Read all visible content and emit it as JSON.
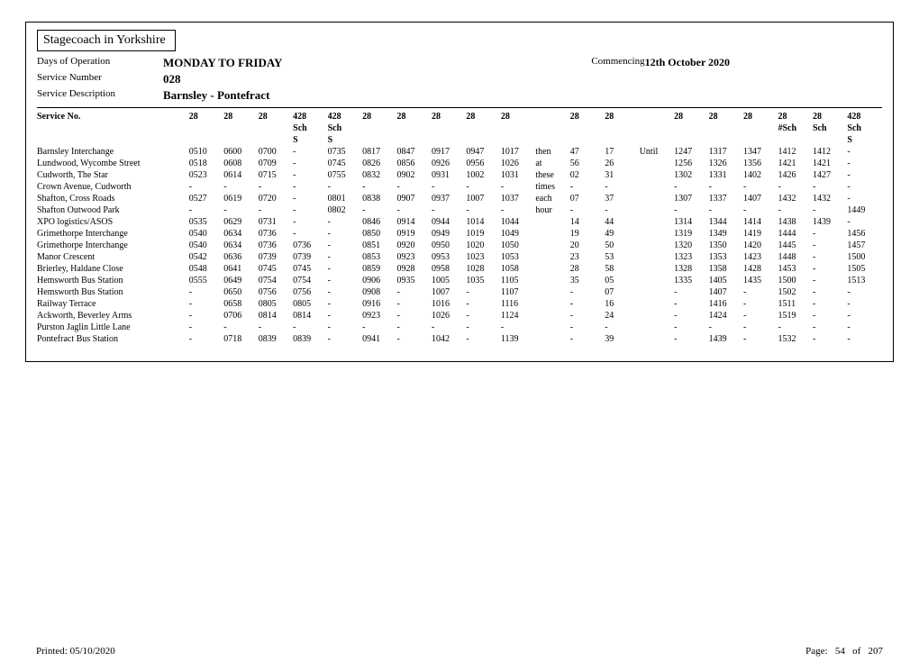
{
  "operator": "Stagecoach in Yorkshire",
  "labels": {
    "days": "Days of Operation",
    "serviceNumber": "Service Number",
    "serviceDescription": "Service Description",
    "commencing": "Commencing",
    "serviceNoRow": "Service No."
  },
  "header": {
    "days": "MONDAY TO FRIDAY",
    "serviceNumber": "028",
    "serviceDescription": "Barnsley - Pontefract",
    "commencingDate": "12th October 2020"
  },
  "serviceRow": [
    "28",
    "28",
    "28",
    "428",
    "428",
    "28",
    "28",
    "28",
    "28",
    "28",
    "",
    "28",
    "28",
    "",
    "28",
    "28",
    "28",
    "28",
    "28",
    "428"
  ],
  "noteRow1": [
    "",
    "",
    "",
    "Sch",
    "Sch",
    "",
    "",
    "",
    "",
    "",
    "",
    "",
    "",
    "",
    "",
    "",
    "",
    "#Sch",
    "Sch",
    "Sch"
  ],
  "noteRow2": [
    "",
    "",
    "",
    "S",
    "S",
    "",
    "",
    "",
    "",
    "",
    "",
    "",
    "",
    "",
    "",
    "",
    "",
    "",
    "",
    "S"
  ],
  "txtCol1": [
    "then",
    "at",
    "these",
    "times",
    "each",
    "hour",
    "",
    "",
    "",
    "",
    "",
    "",
    "",
    "",
    "",
    "",
    ""
  ],
  "txtCol2": [
    "Until",
    "",
    "",
    "",
    "",
    "",
    "",
    "",
    "",
    "",
    "",
    "",
    "",
    "",
    "",
    "",
    "",
    ""
  ],
  "stops": [
    {
      "name": "Barnsley Interchange",
      "t": [
        "0510",
        "0600",
        "0700",
        "-",
        "0735",
        "0817",
        "0847",
        "0917",
        "0947",
        "1017",
        "47",
        "17",
        "1247",
        "1317",
        "1347",
        "1412",
        "1412",
        "-"
      ]
    },
    {
      "name": "Lundwood, Wycombe Street",
      "t": [
        "0518",
        "0608",
        "0709",
        "-",
        "0745",
        "0826",
        "0856",
        "0926",
        "0956",
        "1026",
        "56",
        "26",
        "1256",
        "1326",
        "1356",
        "1421",
        "1421",
        "-"
      ]
    },
    {
      "name": "Cudworth, The Star",
      "t": [
        "0523",
        "0614",
        "0715",
        "-",
        "0755",
        "0832",
        "0902",
        "0931",
        "1002",
        "1031",
        "02",
        "31",
        "1302",
        "1331",
        "1402",
        "1426",
        "1427",
        "-"
      ]
    },
    {
      "name": "Crown Avenue, Cudworth",
      "t": [
        "-",
        "-",
        "-",
        "-",
        "-",
        "-",
        "-",
        "-",
        "-",
        "-",
        "-",
        "-",
        "-",
        "-",
        "-",
        "-",
        "-",
        "-"
      ]
    },
    {
      "name": "Shafton, Cross Roads",
      "t": [
        "0527",
        "0619",
        "0720",
        "-",
        "0801",
        "0838",
        "0907",
        "0937",
        "1007",
        "1037",
        "07",
        "37",
        "1307",
        "1337",
        "1407",
        "1432",
        "1432",
        "-"
      ]
    },
    {
      "name": "Shafton Outwood Park",
      "t": [
        "-",
        "-",
        "-",
        "-",
        "0802",
        "-",
        "-",
        "-",
        "-",
        "-",
        "-",
        "-",
        "-",
        "-",
        "-",
        "-",
        "-",
        "1449"
      ]
    },
    {
      "name": "XPO logistics/ASOS",
      "t": [
        "0535",
        "0629",
        "0731",
        "-",
        "-",
        "0846",
        "0914",
        "0944",
        "1014",
        "1044",
        "14",
        "44",
        "1314",
        "1344",
        "1414",
        "1438",
        "1439",
        "-"
      ]
    },
    {
      "name": "Grimethorpe Interchange",
      "t": [
        "0540",
        "0634",
        "0736",
        "-",
        "-",
        "0850",
        "0919",
        "0949",
        "1019",
        "1049",
        "19",
        "49",
        "1319",
        "1349",
        "1419",
        "1444",
        "-",
        "1456"
      ]
    },
    {
      "name": "Grimethorpe Interchange",
      "t": [
        "0540",
        "0634",
        "0736",
        "0736",
        "-",
        "0851",
        "0920",
        "0950",
        "1020",
        "1050",
        "20",
        "50",
        "1320",
        "1350",
        "1420",
        "1445",
        "-",
        "1457"
      ]
    },
    {
      "name": "Manor Crescent",
      "t": [
        "0542",
        "0636",
        "0739",
        "0739",
        "-",
        "0853",
        "0923",
        "0953",
        "1023",
        "1053",
        "23",
        "53",
        "1323",
        "1353",
        "1423",
        "1448",
        "-",
        "1500"
      ]
    },
    {
      "name": "Brierley, Haldane Close",
      "t": [
        "0548",
        "0641",
        "0745",
        "0745",
        "-",
        "0859",
        "0928",
        "0958",
        "1028",
        "1058",
        "28",
        "58",
        "1328",
        "1358",
        "1428",
        "1453",
        "-",
        "1505"
      ]
    },
    {
      "name": "Hemsworth Bus Station",
      "t": [
        "0555",
        "0649",
        "0754",
        "0754",
        "-",
        "0906",
        "0935",
        "1005",
        "1035",
        "1105",
        "35",
        "05",
        "1335",
        "1405",
        "1435",
        "1500",
        "-",
        "1513"
      ]
    },
    {
      "name": "Hemsworth Bus Station",
      "t": [
        "-",
        "0650",
        "0756",
        "0756",
        "-",
        "0908",
        "-",
        "1007",
        "-",
        "1107",
        "-",
        "07",
        "-",
        "1407",
        "-",
        "1502",
        "-",
        "-"
      ]
    },
    {
      "name": "Railway Terrace",
      "t": [
        "-",
        "0658",
        "0805",
        "0805",
        "-",
        "0916",
        "-",
        "1016",
        "-",
        "1116",
        "-",
        "16",
        "-",
        "1416",
        "-",
        "1511",
        "-",
        "-"
      ]
    },
    {
      "name": "Ackworth, Beverley Arms",
      "t": [
        "-",
        "0706",
        "0814",
        "0814",
        "-",
        "0923",
        "-",
        "1026",
        "-",
        "1124",
        "-",
        "24",
        "-",
        "1424",
        "-",
        "1519",
        "-",
        "-"
      ]
    },
    {
      "name": "Purston Jaglin Little Lane",
      "t": [
        "-",
        "-",
        "-",
        "-",
        "-",
        "-",
        "-",
        "-",
        "-",
        "-",
        "-",
        "-",
        "-",
        "-",
        "-",
        "-",
        "-",
        "-"
      ]
    },
    {
      "name": "Pontefract Bus Station",
      "t": [
        "-",
        "0718",
        "0839",
        "0839",
        "-",
        "0941",
        "-",
        "1042",
        "-",
        "1139",
        "-",
        "39",
        "-",
        "1439",
        "-",
        "1532",
        "-",
        "-"
      ]
    }
  ],
  "footer": {
    "printedLabel": "Printed:",
    "printedDate": "05/10/2020",
    "pageLabel": "Page:",
    "pageNum": "54",
    "of": "of",
    "pageTotal": "207"
  }
}
